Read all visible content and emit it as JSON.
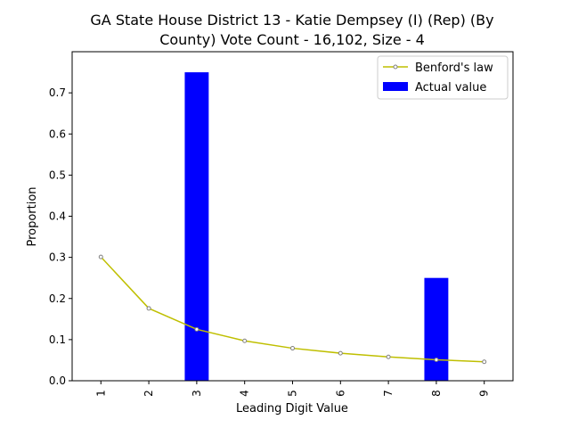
{
  "chart_data": {
    "type": "bar",
    "title_lines": [
      "GA State House District 13 - Katie Dempsey (I) (Rep) (By",
      "County) Vote Count - 16,102, Size - 4"
    ],
    "xlabel": "Leading Digit Value",
    "ylabel": "Proportion",
    "categories": [
      "1",
      "2",
      "3",
      "4",
      "5",
      "6",
      "7",
      "8",
      "9"
    ],
    "ylim": [
      0,
      0.8
    ],
    "yticks": [
      "0.0",
      "0.1",
      "0.2",
      "0.3",
      "0.4",
      "0.5",
      "0.6",
      "0.7"
    ],
    "ytick_values": [
      0,
      0.1,
      0.2,
      0.3,
      0.4,
      0.5,
      0.6,
      0.7
    ],
    "grid": false,
    "legend_position": "top-right",
    "series": [
      {
        "name": "Benford's law",
        "kind": "line",
        "color": "#bfbf00",
        "values": [
          0.301,
          0.176,
          0.125,
          0.097,
          0.079,
          0.067,
          0.058,
          0.051,
          0.046
        ]
      },
      {
        "name": "Actual value",
        "kind": "bar",
        "color": "#0000ff",
        "values": [
          0,
          0,
          0.75,
          0,
          0,
          0,
          0,
          0.25,
          0
        ]
      }
    ]
  }
}
